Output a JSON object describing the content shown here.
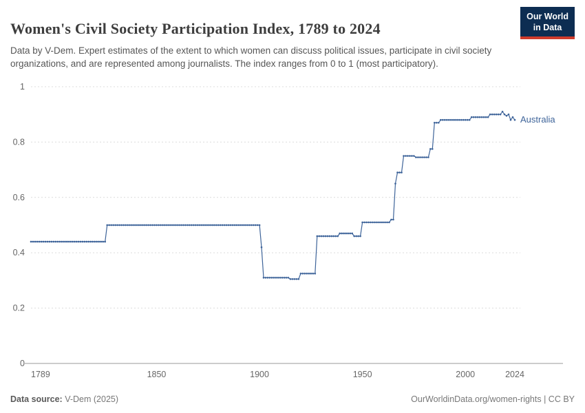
{
  "logo": {
    "line1": "Our World",
    "line2": "in Data"
  },
  "brand": {
    "navy": "#0d2d52",
    "red": "#cf3b2c"
  },
  "header": {
    "title": "Women's Civil Society Participation Index, 1789 to 2024",
    "subtitle": "Data by V-Dem. Expert estimates of the extent to which women can discuss political issues, participate in civil society organizations, and are represented among journalists. The index ranges from 0 to 1 (most participatory)."
  },
  "footer": {
    "source_label": "Data source:",
    "source_value": " V-Dem (2025)",
    "right_text": "OurWorldinData.org/women-rights | CC BY"
  },
  "chart_data": {
    "type": "line",
    "title": "Women's Civil Society Participation Index, 1789 to 2024",
    "xlabel": "",
    "ylabel": "",
    "xlim": [
      1789,
      2024
    ],
    "ylim": [
      0,
      1
    ],
    "xticks": [
      1789,
      1850,
      1900,
      1950,
      2000,
      2024
    ],
    "yticks": [
      0,
      0.2,
      0.4,
      0.6,
      0.8,
      1
    ],
    "grid": "horizontal-dashed",
    "legend_position": "end-of-line-label",
    "series": [
      {
        "name": "Australia",
        "color": "#3d6399",
        "points": [
          [
            1789,
            0.44
          ],
          [
            1825,
            0.44
          ],
          [
            1826,
            0.5
          ],
          [
            1900,
            0.5
          ],
          [
            1901,
            0.42
          ],
          [
            1902,
            0.31
          ],
          [
            1914,
            0.31
          ],
          [
            1915,
            0.305
          ],
          [
            1919,
            0.305
          ],
          [
            1920,
            0.325
          ],
          [
            1927,
            0.325
          ],
          [
            1928,
            0.46
          ],
          [
            1938,
            0.46
          ],
          [
            1939,
            0.47
          ],
          [
            1945,
            0.47
          ],
          [
            1946,
            0.46
          ],
          [
            1949,
            0.46
          ],
          [
            1950,
            0.51
          ],
          [
            1963,
            0.51
          ],
          [
            1964,
            0.52
          ],
          [
            1965,
            0.52
          ],
          [
            1966,
            0.65
          ],
          [
            1967,
            0.69
          ],
          [
            1969,
            0.69
          ],
          [
            1970,
            0.75
          ],
          [
            1975,
            0.75
          ],
          [
            1976,
            0.745
          ],
          [
            1982,
            0.745
          ],
          [
            1983,
            0.775
          ],
          [
            1984,
            0.775
          ],
          [
            1985,
            0.87
          ],
          [
            1987,
            0.87
          ],
          [
            1988,
            0.88
          ],
          [
            2002,
            0.88
          ],
          [
            2003,
            0.89
          ],
          [
            2011,
            0.89
          ],
          [
            2012,
            0.9
          ],
          [
            2017,
            0.9
          ],
          [
            2018,
            0.91
          ],
          [
            2019,
            0.9
          ],
          [
            2020,
            0.895
          ],
          [
            2021,
            0.9
          ],
          [
            2022,
            0.88
          ],
          [
            2023,
            0.89
          ],
          [
            2024,
            0.88
          ]
        ]
      }
    ]
  }
}
